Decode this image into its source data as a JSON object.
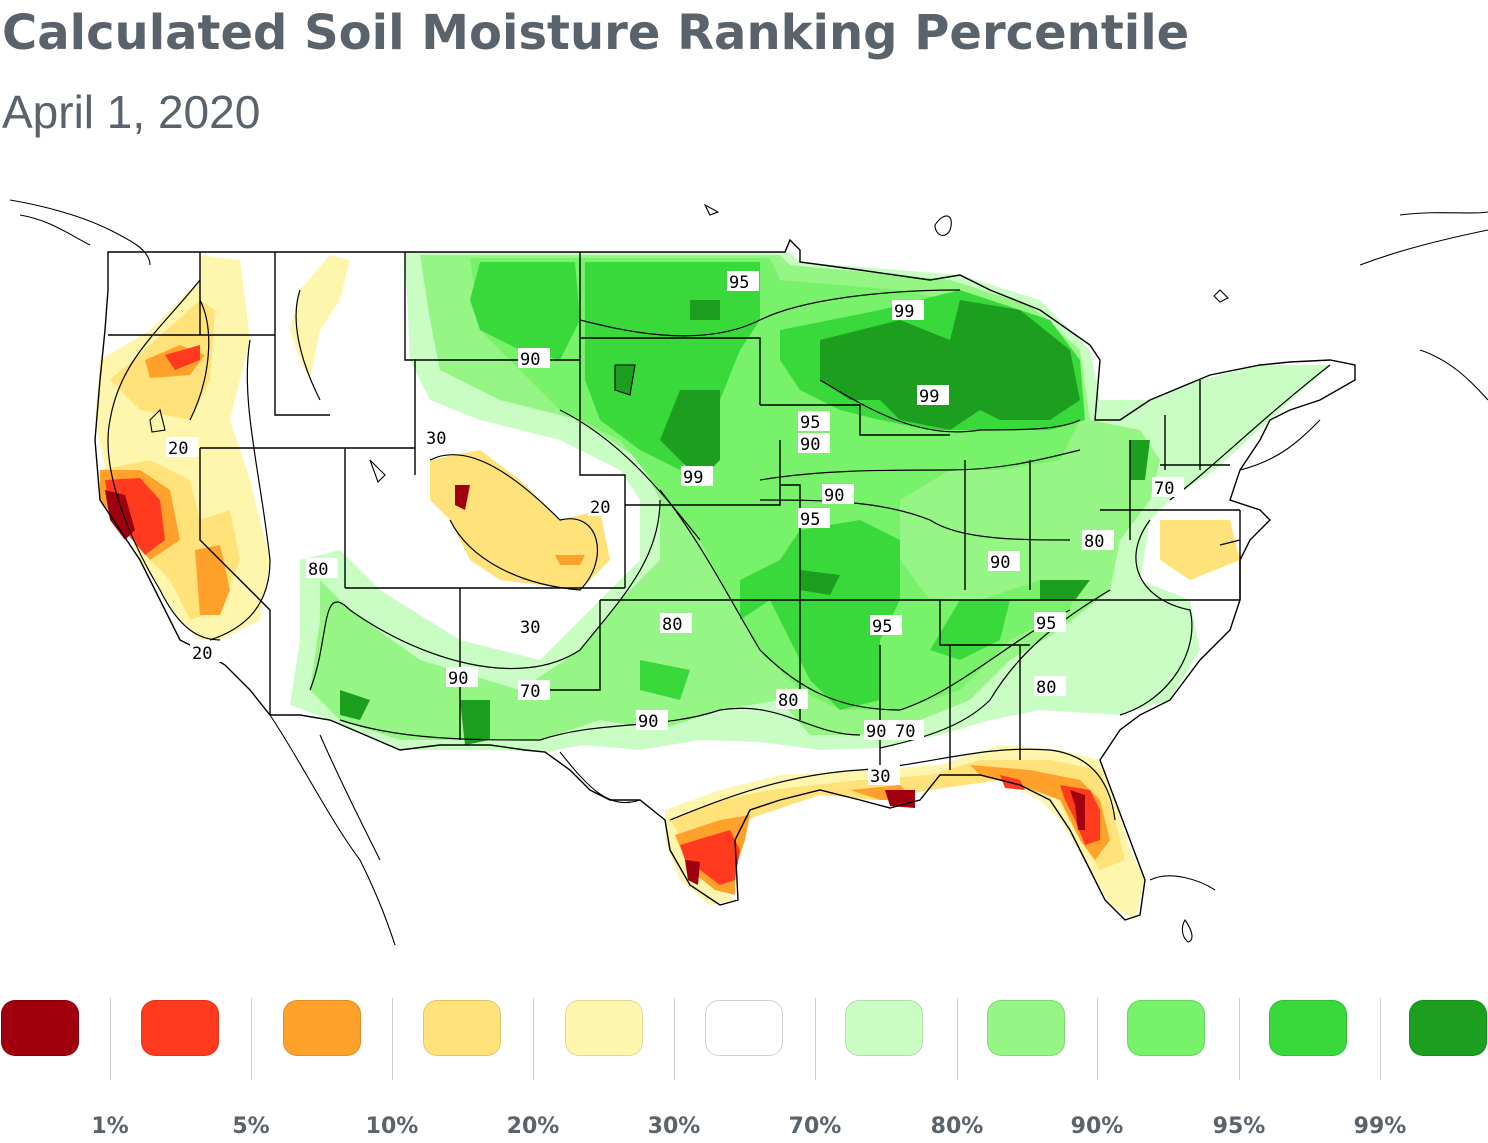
{
  "header": {
    "title": "Calculated Soil Moisture Ranking Percentile",
    "subtitle": "April 1, 2020"
  },
  "map": {
    "contour_labels": [
      "95",
      "99",
      "90",
      "99",
      "95",
      "90",
      "99",
      "90",
      "95",
      "70",
      "30",
      "20",
      "20",
      "80",
      "90",
      "80",
      "20",
      "30",
      "80",
      "95",
      "95",
      "80",
      "90",
      "70",
      "90",
      "80",
      "90",
      "70",
      "30"
    ],
    "colors": {
      "c1": "#a0000e",
      "c5": "#ff3a1e",
      "c10": "#ffa12b",
      "c20": "#ffe27a",
      "c30": "#fff6ad",
      "c70": "#ffffff",
      "c80": "#c9fdc4",
      "c90": "#95f585",
      "c95": "#78f26a",
      "c99": "#3ad93b",
      "c100": "#1c9f1f"
    }
  },
  "legend": {
    "colors": [
      "#a0000e",
      "#ff3a1e",
      "#ffa12b",
      "#ffe27a",
      "#fff6ad",
      "#ffffff",
      "#c9fdc4",
      "#95f585",
      "#78f26a",
      "#3ad93b",
      "#1c9f1f"
    ],
    "ticks": [
      "1%",
      "5%",
      "10%",
      "20%",
      "30%",
      "70%",
      "80%",
      "90%",
      "95%",
      "99%"
    ]
  }
}
